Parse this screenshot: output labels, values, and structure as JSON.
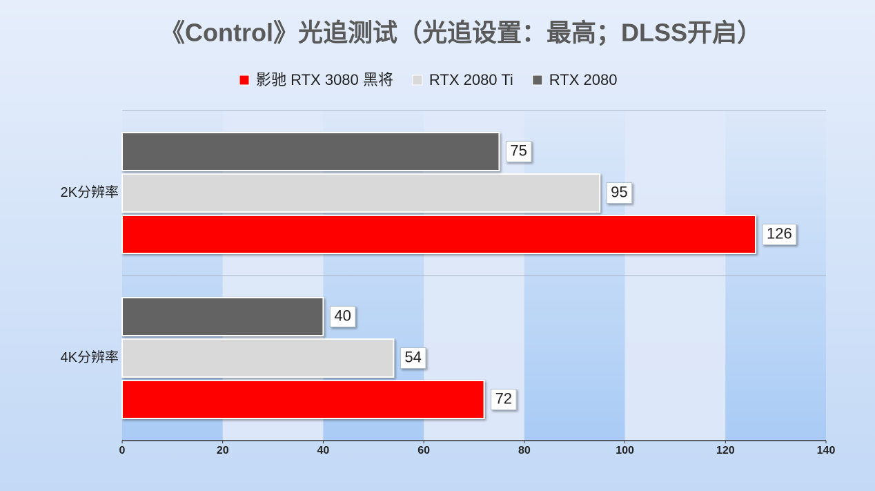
{
  "chart_data": {
    "type": "bar",
    "orientation": "horizontal",
    "title": "《Control》光追测试（光追设置：最高；DLSS开启）",
    "categories": [
      "2K分辨率",
      "4K分辨率"
    ],
    "series": [
      {
        "name": "影驰 RTX 3080 黑将",
        "color": "#ff0000",
        "values": [
          126,
          72
        ]
      },
      {
        "name": "RTX 2080 Ti",
        "color": "#d9d9d9",
        "values": [
          95,
          54
        ]
      },
      {
        "name": "RTX 2080",
        "color": "#636363",
        "values": [
          75,
          40
        ]
      }
    ],
    "xlim": [
      0,
      140
    ],
    "xticks": [
      0,
      20,
      40,
      60,
      80,
      100,
      120,
      140
    ],
    "legend": "top",
    "data_labels": true
  }
}
